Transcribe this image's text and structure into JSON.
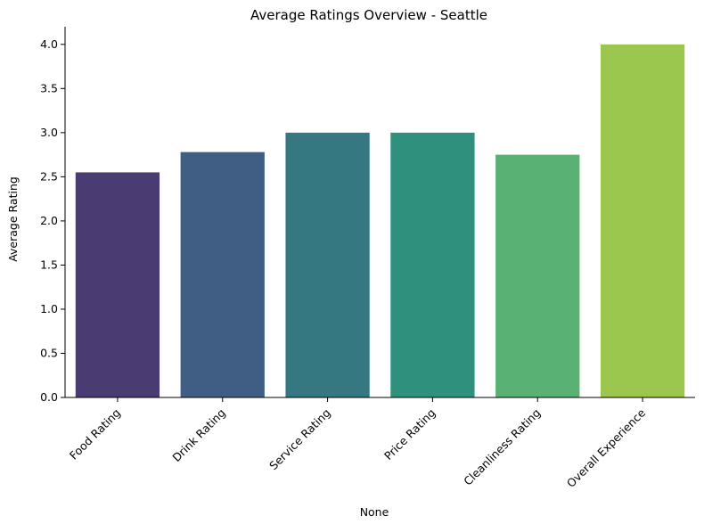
{
  "chart_data": {
    "type": "bar",
    "title": "Average Ratings Overview - Seattle",
    "xlabel": "None",
    "ylabel": "Average Rating",
    "categories": [
      "Food Rating",
      "Drink Rating",
      "Service Rating",
      "Price Rating",
      "Cleanliness Rating",
      "Overall Experience"
    ],
    "values": [
      2.55,
      2.78,
      3.0,
      3.0,
      2.75,
      4.0
    ],
    "colors": [
      "#4a3b73",
      "#405d84",
      "#357882",
      "#2f917d",
      "#59b273",
      "#9bc74e"
    ],
    "ylim": [
      0,
      4.2
    ],
    "yticks": [
      0.0,
      0.5,
      1.0,
      1.5,
      2.0,
      2.5,
      3.0,
      3.5,
      4.0
    ],
    "ytick_labels": [
      "0.0",
      "0.5",
      "1.0",
      "1.5",
      "2.0",
      "2.5",
      "3.0",
      "3.5",
      "4.0"
    ],
    "grid": false,
    "legend": "none"
  }
}
